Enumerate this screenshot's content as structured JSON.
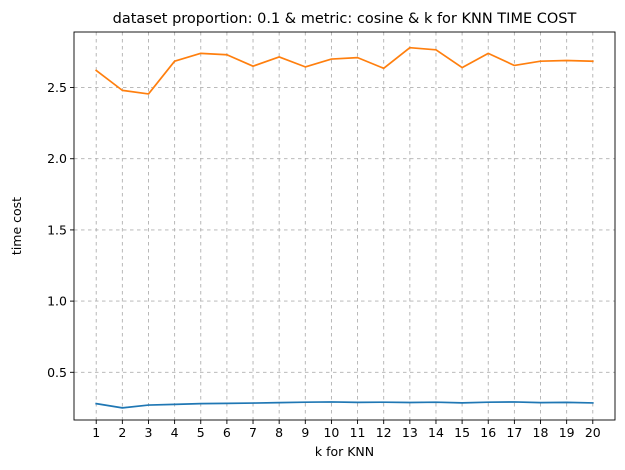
{
  "chart_data": {
    "type": "line",
    "title": "dataset proportion: 0.1 & metric: cosine & k for KNN TIME COST",
    "xlabel": "k for KNN",
    "ylabel": "time cost",
    "x": [
      1,
      2,
      3,
      4,
      5,
      6,
      7,
      8,
      9,
      10,
      11,
      12,
      13,
      14,
      15,
      16,
      17,
      18,
      19,
      20
    ],
    "xlim": [
      0.15,
      20.85
    ],
    "ylim": [
      0.165,
      2.89
    ],
    "yticks": [
      0.5,
      1.0,
      1.5,
      2.0,
      2.5
    ],
    "ytick_labels": [
      "0.5",
      "1.0",
      "1.5",
      "2.0",
      "2.5"
    ],
    "grid": true,
    "series": [
      {
        "color": "#1f77b4",
        "values": [
          0.28,
          0.25,
          0.27,
          0.275,
          0.28,
          0.282,
          0.284,
          0.287,
          0.29,
          0.292,
          0.289,
          0.29,
          0.288,
          0.29,
          0.285,
          0.29,
          0.292,
          0.287,
          0.289,
          0.285
        ]
      },
      {
        "color": "#ff7f0e",
        "values": [
          2.62,
          2.48,
          2.455,
          2.685,
          2.74,
          2.73,
          2.65,
          2.715,
          2.645,
          2.7,
          2.71,
          2.635,
          2.78,
          2.765,
          2.64,
          2.74,
          2.655,
          2.685,
          2.69,
          2.685
        ]
      }
    ]
  }
}
